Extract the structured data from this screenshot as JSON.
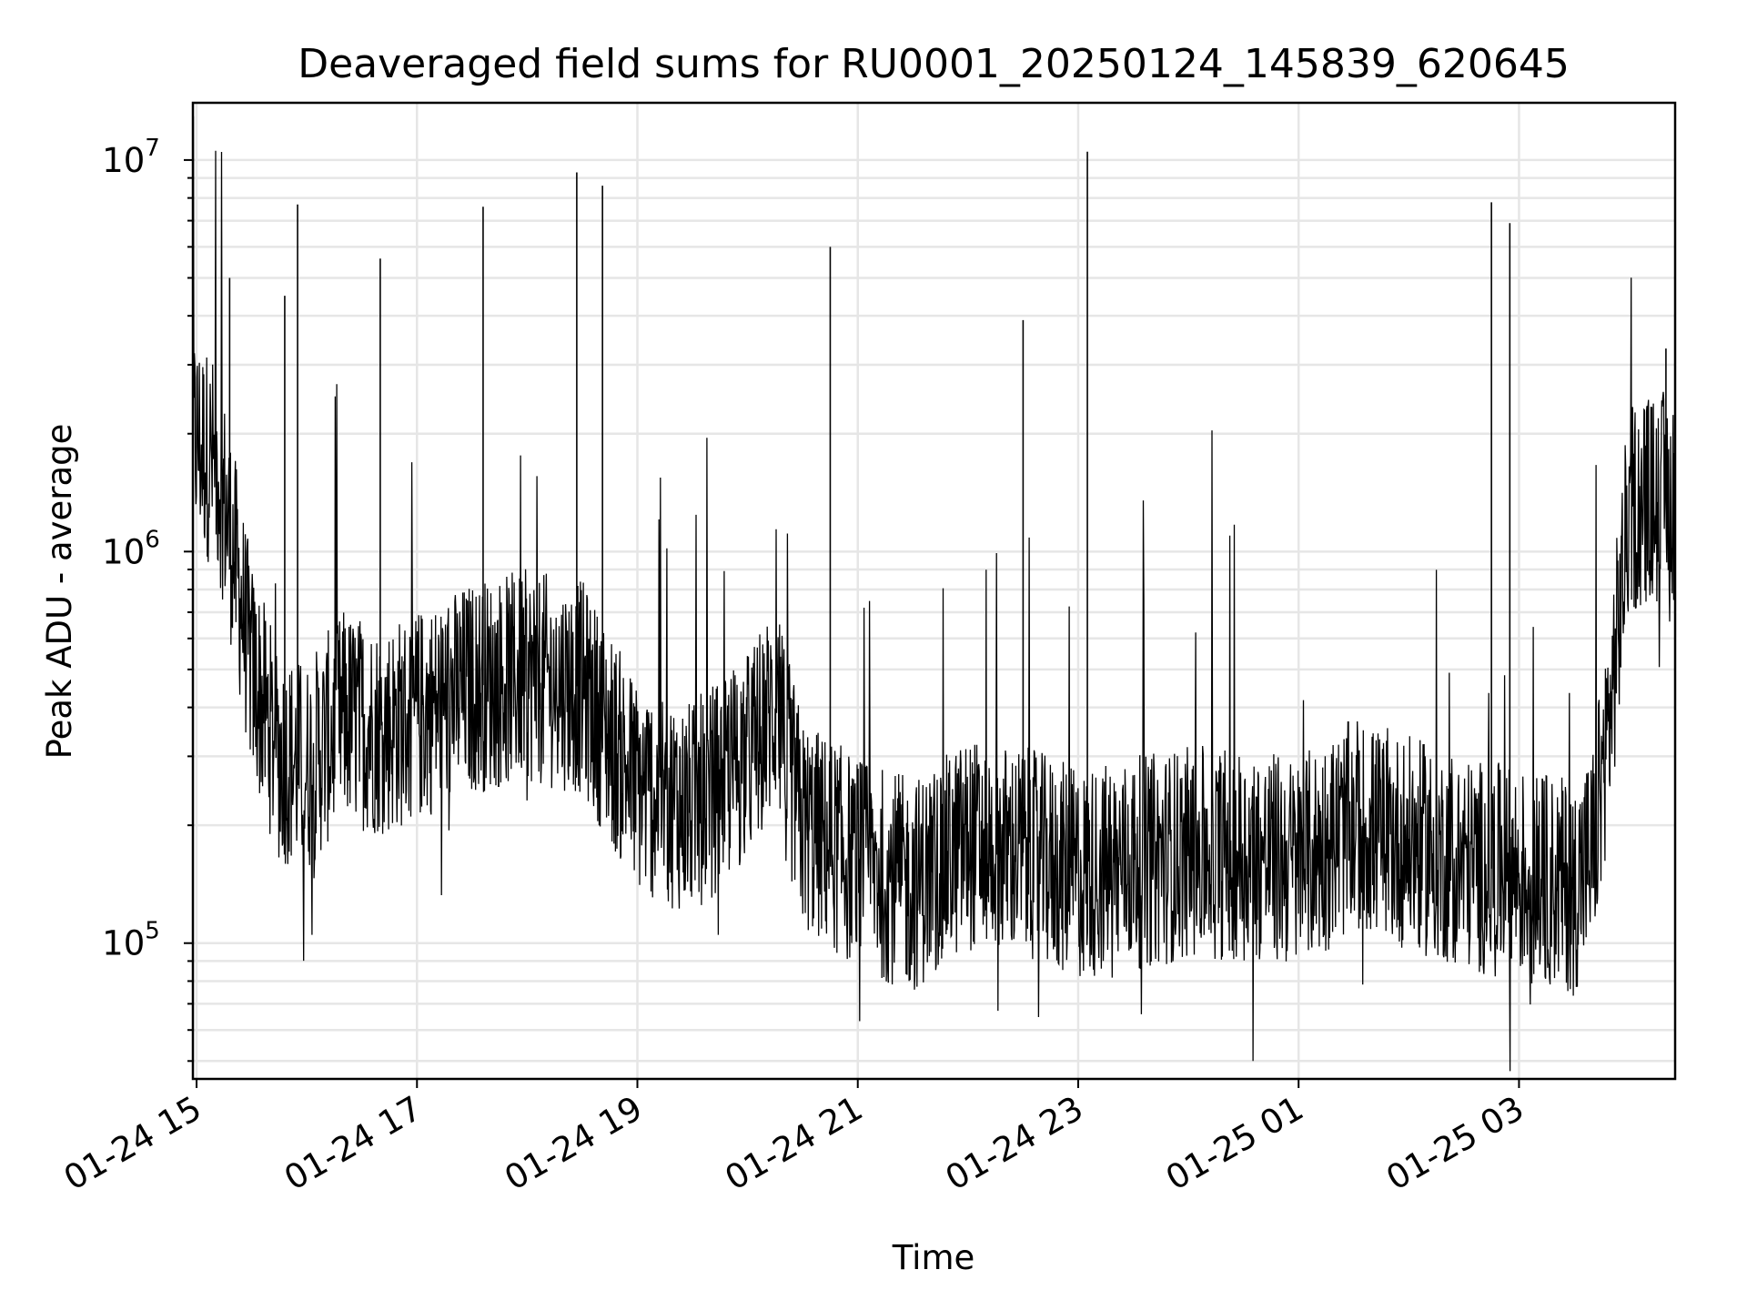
{
  "chart_data": {
    "type": "line",
    "title": "Deaveraged field sums for RU0001_20250124_145839_620645",
    "xlabel": "Time",
    "ylabel": "Peak ADU - average",
    "yscale": "log",
    "ylim": [
      45000,
      14000000
    ],
    "xlim": [
      "2025-01-24 14:58",
      "2025-01-25 04:25"
    ],
    "x_ticks": [
      {
        "label": "01-24 15",
        "value": "2025-01-24 15:00"
      },
      {
        "label": "01-24 17",
        "value": "2025-01-24 17:00"
      },
      {
        "label": "01-24 19",
        "value": "2025-01-24 19:00"
      },
      {
        "label": "01-24 21",
        "value": "2025-01-24 21:00"
      },
      {
        "label": "01-24 23",
        "value": "2025-01-24 23:00"
      },
      {
        "label": "01-25 01",
        "value": "2025-01-25 01:00"
      },
      {
        "label": "01-25 03",
        "value": "2025-01-25 03:00"
      }
    ],
    "y_ticks": [
      {
        "base": "10",
        "exp": "5",
        "value": 100000
      },
      {
        "base": "10",
        "exp": "6",
        "value": 1000000
      },
      {
        "base": "10",
        "exp": "7",
        "value": 10000000
      }
    ],
    "grid": true,
    "line_color": "#000000",
    "grid_color": "#e6e6e6",
    "series": [
      {
        "x": [
          "2025-01-24 14:58",
          "2025-01-24 15:05",
          "2025-01-24 15:12",
          "2025-01-24 15:20",
          "2025-01-24 15:30",
          "2025-01-24 15:45",
          "2025-01-24 16:00",
          "2025-01-24 16:20",
          "2025-01-24 16:40",
          "2025-01-24 17:00",
          "2025-01-24 17:30",
          "2025-01-24 18:00",
          "2025-01-24 18:30",
          "2025-01-24 19:00",
          "2025-01-24 19:30",
          "2025-01-24 20:00",
          "2025-01-24 20:15",
          "2025-01-24 20:30",
          "2025-01-24 21:00",
          "2025-01-24 21:30",
          "2025-01-24 22:00",
          "2025-01-24 22:30",
          "2025-01-24 23:00",
          "2025-01-24 23:30",
          "2025-01-25 00:00",
          "2025-01-25 00:30",
          "2025-01-25 01:00",
          "2025-01-25 01:30",
          "2025-01-25 02:00",
          "2025-01-25 02:30",
          "2025-01-25 03:00",
          "2025-01-25 03:30",
          "2025-01-25 03:40",
          "2025-01-25 03:50",
          "2025-01-25 04:00",
          "2025-01-25 04:25"
        ],
        "y": [
          2000000,
          1800000,
          1600000,
          1000000,
          500000,
          300000,
          280000,
          380000,
          350000,
          380000,
          450000,
          480000,
          450000,
          250000,
          220000,
          300000,
          400000,
          200000,
          160000,
          140000,
          180000,
          170000,
          150000,
          160000,
          170000,
          170000,
          160000,
          200000,
          180000,
          160000,
          150000,
          140000,
          170000,
          400000,
          1300000,
          1400000
        ]
      }
    ],
    "spikes": [
      {
        "x": "2025-01-24 14:58",
        "y": 3800000
      },
      {
        "x": "2025-01-24 15:18",
        "y": 5000000
      },
      {
        "x": "2025-01-24 15:48",
        "y": 4500000
      },
      {
        "x": "2025-01-24 15:55",
        "y": 7700000
      },
      {
        "x": "2025-01-24 16:40",
        "y": 5600000
      },
      {
        "x": "2025-01-24 17:36",
        "y": 7600000
      },
      {
        "x": "2025-01-24 18:27",
        "y": 9300000
      },
      {
        "x": "2025-01-24 18:41",
        "y": 8600000
      },
      {
        "x": "2025-01-24 20:45",
        "y": 6000000
      },
      {
        "x": "2025-01-24 22:30",
        "y": 3900000
      },
      {
        "x": "2025-01-24 23:05",
        "y": 10500000
      },
      {
        "x": "2025-01-25 02:45",
        "y": 7800000
      },
      {
        "x": "2025-01-25 02:55",
        "y": 6900000
      },
      {
        "x": "2025-01-25 04:20",
        "y": 3300000
      }
    ]
  }
}
